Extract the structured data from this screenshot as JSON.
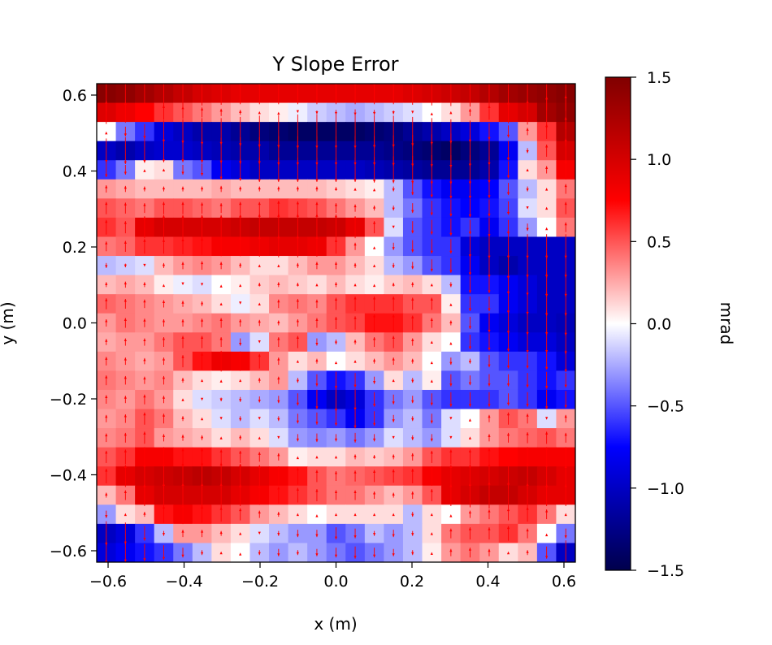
{
  "chart_data": {
    "type": "heatmap",
    "title": "Y Slope Error",
    "xlabel": "x (m)",
    "ylabel": "y (m)",
    "xlim": [
      -0.63,
      0.63
    ],
    "ylim": [
      -0.63,
      0.63
    ],
    "xticks": [
      -0.6,
      -0.4,
      -0.2,
      0.0,
      0.2,
      0.4,
      0.6
    ],
    "xtick_labels": [
      "−0.6",
      "−0.4",
      "−0.2",
      "0.0",
      "0.2",
      "0.4",
      "0.6"
    ],
    "yticks": [
      -0.6,
      -0.4,
      -0.2,
      0.0,
      0.2,
      0.4,
      0.6
    ],
    "ytick_labels": [
      "−0.6",
      "−0.4",
      "−0.2",
      "0.0",
      "0.2",
      "0.4",
      "0.6"
    ],
    "colorbar": {
      "label": "mrad",
      "range": [
        -1.5,
        1.5
      ],
      "colormap": "seismic",
      "ticks": [
        -1.5,
        -1.0,
        -0.5,
        0.0,
        0.5,
        1.0,
        1.5
      ],
      "tick_labels": [
        "−1.5",
        "−1.0",
        "−0.5",
        "0.0",
        "0.5",
        "1.0",
        "1.5"
      ]
    },
    "grid": false,
    "quiver_color": "#ff0000",
    "grid_shape": [
      25,
      25
    ],
    "row_order": "top-to-bottom",
    "cell_size_m": 0.05,
    "values": [
      [
        1.45,
        1.4,
        1.3,
        1.2,
        1.1,
        1.0,
        0.95,
        0.9,
        0.9,
        0.9,
        0.9,
        0.9,
        0.9,
        0.9,
        0.9,
        0.9,
        0.95,
        1.0,
        1.05,
        1.1,
        1.2,
        1.3,
        1.35,
        1.4,
        1.45
      ],
      [
        0.95,
        0.85,
        0.75,
        0.6,
        0.5,
        0.4,
        0.3,
        0.2,
        0.1,
        0.05,
        -0.05,
        -0.15,
        -0.2,
        -0.25,
        -0.2,
        -0.15,
        -0.1,
        0.0,
        0.1,
        0.3,
        0.6,
        0.9,
        1.0,
        1.3,
        1.4
      ],
      [
        0.0,
        -0.4,
        -0.6,
        -0.9,
        -1.0,
        -1.1,
        -1.1,
        -1.2,
        -1.3,
        -1.35,
        -1.4,
        -1.4,
        -1.4,
        -1.4,
        -1.35,
        -1.3,
        -1.2,
        -1.1,
        -1.0,
        -0.9,
        -0.7,
        -0.5,
        0.3,
        0.6,
        1.2
      ],
      [
        -1.0,
        -1.1,
        -1.0,
        -0.95,
        -0.95,
        -1.0,
        -1.05,
        -1.1,
        -1.1,
        -1.2,
        -1.2,
        -1.2,
        -1.2,
        -1.2,
        -1.2,
        -1.25,
        -1.3,
        -1.35,
        -1.4,
        -1.3,
        -1.2,
        -0.8,
        -0.2,
        0.5,
        1.0
      ],
      [
        -0.6,
        -0.4,
        0.05,
        0.1,
        -0.4,
        -0.5,
        -0.8,
        -0.9,
        -1.0,
        -1.0,
        -1.0,
        -1.0,
        -1.0,
        -1.0,
        -1.05,
        -1.1,
        -1.15,
        -1.2,
        -1.2,
        -1.2,
        -1.1,
        -0.7,
        0.1,
        0.3,
        0.8
      ],
      [
        0.3,
        0.25,
        0.2,
        0.2,
        0.2,
        0.2,
        0.25,
        0.2,
        0.2,
        0.2,
        0.2,
        0.2,
        0.15,
        0.1,
        0.05,
        -0.2,
        -0.5,
        -0.7,
        -0.8,
        -0.8,
        -0.75,
        -0.5,
        -0.2,
        0.1,
        0.4
      ],
      [
        0.5,
        0.45,
        0.4,
        0.5,
        0.5,
        0.45,
        0.4,
        0.5,
        0.5,
        0.6,
        0.55,
        0.5,
        0.4,
        0.3,
        0.2,
        -0.2,
        -0.4,
        -0.6,
        -0.7,
        -0.75,
        -0.7,
        -0.55,
        -0.1,
        0.1,
        0.5
      ],
      [
        0.6,
        0.5,
        0.9,
        1.0,
        1.0,
        1.0,
        1.0,
        1.05,
        1.1,
        1.1,
        1.1,
        1.1,
        1.05,
        0.9,
        0.5,
        -0.1,
        -0.5,
        -0.6,
        -0.7,
        -0.6,
        -0.8,
        -0.6,
        -0.3,
        0.0,
        0.4
      ],
      [
        0.4,
        0.45,
        0.6,
        0.6,
        0.65,
        0.7,
        0.8,
        0.8,
        0.85,
        0.9,
        0.9,
        0.85,
        0.6,
        0.3,
        0.0,
        -0.3,
        -0.5,
        -0.6,
        -0.6,
        -0.9,
        -1.0,
        -1.0,
        -1.0,
        -1.0,
        -1.0
      ],
      [
        -0.2,
        -0.15,
        -0.1,
        0.2,
        0.3,
        0.35,
        0.3,
        0.2,
        0.1,
        0.1,
        0.2,
        0.3,
        0.3,
        0.2,
        0.1,
        -0.2,
        -0.3,
        -0.5,
        -0.6,
        -0.8,
        -1.0,
        -1.1,
        -1.0,
        -1.0,
        -1.0
      ],
      [
        0.2,
        0.25,
        0.2,
        0.05,
        -0.05,
        -0.1,
        0.0,
        0.05,
        0.15,
        0.2,
        0.15,
        0.1,
        0.2,
        0.1,
        0.05,
        0.15,
        0.2,
        0.1,
        -0.2,
        -0.7,
        -0.7,
        -0.8,
        -0.9,
        -1.0,
        -1.0
      ],
      [
        0.45,
        0.4,
        0.35,
        0.3,
        0.25,
        0.2,
        0.1,
        -0.05,
        0.1,
        0.35,
        0.4,
        0.35,
        0.5,
        0.6,
        0.6,
        0.6,
        0.5,
        0.5,
        0.05,
        -0.6,
        -0.6,
        -0.8,
        -0.9,
        -1.0,
        -1.0
      ],
      [
        0.3,
        0.4,
        0.35,
        0.3,
        0.3,
        0.35,
        0.4,
        0.3,
        0.25,
        0.2,
        0.3,
        0.4,
        0.5,
        0.55,
        0.7,
        0.7,
        0.6,
        0.4,
        0.2,
        -0.5,
        -0.8,
        -0.9,
        -1.0,
        -1.0,
        -1.05
      ],
      [
        0.25,
        0.3,
        0.3,
        0.4,
        0.5,
        0.5,
        0.4,
        -0.3,
        -0.1,
        0.4,
        0.5,
        -0.3,
        -0.2,
        0.2,
        0.4,
        0.5,
        0.3,
        0.1,
        0.0,
        -0.6,
        -0.7,
        -0.8,
        -0.9,
        -0.9,
        -1.0
      ],
      [
        0.35,
        0.3,
        0.25,
        0.3,
        0.5,
        0.7,
        0.85,
        0.8,
        0.6,
        0.3,
        0.1,
        0.2,
        0.0,
        0.1,
        0.2,
        0.3,
        0.2,
        0.0,
        -0.3,
        -0.2,
        -0.5,
        -0.6,
        -0.6,
        -0.7,
        -0.9
      ],
      [
        0.4,
        0.35,
        0.3,
        0.35,
        0.2,
        0.1,
        0.05,
        0.1,
        0.2,
        0.3,
        -0.2,
        -0.5,
        -0.7,
        -0.6,
        -0.3,
        0.1,
        -0.2,
        0.05,
        -0.5,
        -0.4,
        -0.5,
        -0.5,
        -0.6,
        -0.7,
        -0.6
      ],
      [
        0.35,
        0.3,
        0.4,
        0.3,
        0.1,
        -0.1,
        -0.15,
        -0.2,
        -0.25,
        -0.3,
        -0.5,
        -0.8,
        -1.0,
        -0.9,
        -0.6,
        -0.4,
        -0.3,
        -0.5,
        -0.6,
        -0.6,
        -0.6,
        -0.5,
        -0.6,
        -0.8,
        -0.7
      ],
      [
        0.3,
        0.35,
        0.5,
        0.4,
        0.2,
        0.1,
        -0.1,
        -0.2,
        -0.1,
        -0.2,
        -0.4,
        -0.5,
        -0.6,
        -0.8,
        -0.6,
        -0.3,
        -0.2,
        -0.4,
        -0.1,
        0.0,
        0.3,
        0.5,
        0.4,
        -0.1,
        0.3
      ],
      [
        0.35,
        0.4,
        0.5,
        0.3,
        0.25,
        0.2,
        0.1,
        0.2,
        0.1,
        -0.1,
        -0.3,
        -0.35,
        -0.3,
        -0.4,
        -0.3,
        -0.1,
        -0.2,
        -0.3,
        -0.1,
        0.1,
        0.3,
        0.4,
        0.45,
        0.5,
        0.4
      ],
      [
        0.5,
        0.6,
        0.8,
        0.8,
        0.7,
        0.7,
        0.6,
        0.5,
        0.4,
        0.3,
        0.05,
        0.1,
        0.1,
        0.2,
        0.15,
        0.2,
        0.3,
        0.5,
        0.6,
        0.6,
        0.7,
        0.75,
        0.8,
        0.8,
        0.8
      ],
      [
        0.6,
        0.9,
        1.0,
        1.05,
        1.1,
        1.15,
        1.1,
        1.0,
        0.9,
        0.8,
        0.7,
        0.5,
        0.4,
        0.45,
        0.5,
        0.55,
        0.6,
        0.8,
        0.9,
        0.95,
        1.0,
        1.05,
        1.1,
        1.0,
        0.9
      ],
      [
        0.2,
        0.4,
        0.9,
        1.0,
        1.0,
        1.0,
        1.0,
        0.9,
        0.8,
        0.7,
        0.6,
        0.5,
        0.4,
        0.4,
        0.3,
        0.2,
        0.3,
        0.5,
        0.9,
        1.0,
        1.1,
        1.1,
        1.0,
        0.9,
        0.9
      ],
      [
        -0.3,
        0.1,
        0.2,
        0.7,
        0.8,
        0.7,
        0.6,
        0.5,
        0.3,
        0.2,
        0.1,
        0.0,
        0.1,
        0.1,
        0.1,
        0.1,
        -0.2,
        0.1,
        0.0,
        0.3,
        0.4,
        0.5,
        0.6,
        0.4,
        0.1
      ],
      [
        -1.0,
        -0.9,
        -0.6,
        -0.2,
        0.3,
        0.3,
        0.2,
        0.1,
        -0.1,
        -0.2,
        -0.3,
        -0.3,
        -0.5,
        -0.4,
        -0.2,
        -0.3,
        -0.2,
        0.1,
        0.4,
        0.5,
        0.5,
        0.6,
        0.4,
        0.0,
        -0.4
      ],
      [
        -0.9,
        -0.8,
        -0.7,
        -0.6,
        -0.4,
        -0.2,
        0.1,
        0.0,
        -0.2,
        -0.3,
        -0.2,
        -0.3,
        -0.4,
        -0.5,
        -0.4,
        -0.3,
        -0.2,
        0.05,
        0.3,
        0.4,
        0.3,
        0.1,
        0.2,
        -0.5,
        -1.0
      ]
    ]
  }
}
